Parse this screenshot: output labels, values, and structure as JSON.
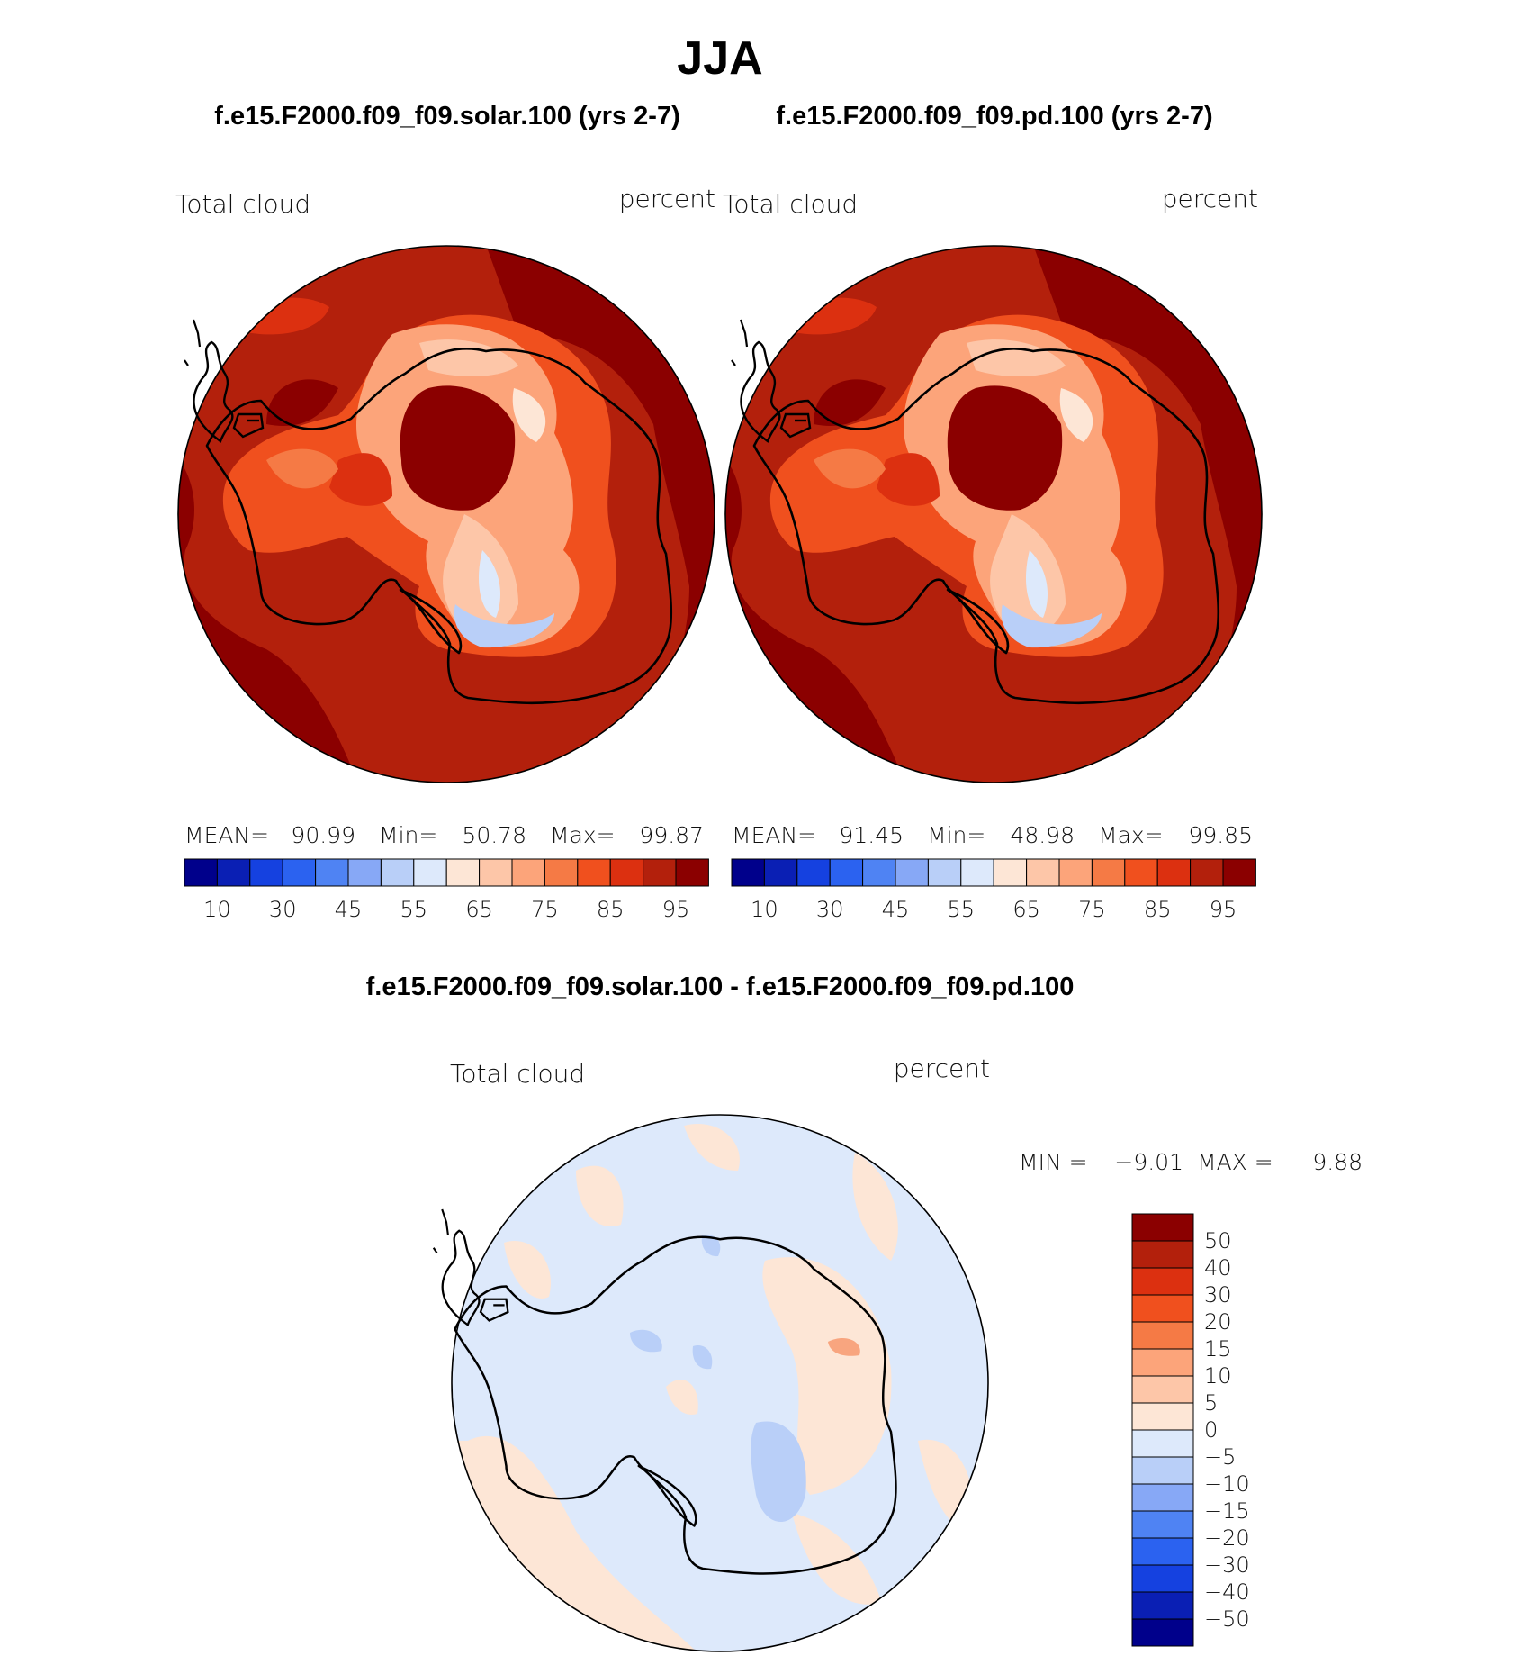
{
  "title": "JJA",
  "panels": [
    {
      "case_title": "f.e15.F2000.f09_f09.solar.100 (yrs 2-7)",
      "variable": "Total cloud",
      "units": "percent",
      "stats": {
        "mean_label": "MEAN=",
        "mean": "90.99",
        "min_label": "Min=",
        "min": "50.78",
        "max_label": "Max=",
        "max": "99.87"
      }
    },
    {
      "case_title": "f.e15.F2000.f09_f09.pd.100 (yrs 2-7)",
      "variable": "Total cloud",
      "units": "percent",
      "stats": {
        "mean_label": "MEAN=",
        "mean": "91.45",
        "min_label": "Min=",
        "min": "48.98",
        "max_label": "Max=",
        "max": "99.85"
      }
    }
  ],
  "abs_colorbar": {
    "colors": [
      "#00008b",
      "#0a1fb4",
      "#1541e0",
      "#2b62f0",
      "#4f83f3",
      "#87a8f6",
      "#b9cff8",
      "#dde9fb",
      "#fde6d6",
      "#fdc6a8",
      "#fca47a",
      "#f57a45",
      "#f0501e",
      "#dc3010",
      "#b3200c",
      "#8b0000"
    ],
    "tick_labels": [
      "10",
      "30",
      "45",
      "55",
      "65",
      "75",
      "85",
      "95"
    ]
  },
  "diff": {
    "title": "f.e15.F2000.f09_f09.solar.100 - f.e15.F2000.f09_f09.pd.100",
    "variable": "Total cloud",
    "units": "percent",
    "min_label": "MIN =",
    "min": "−9.01",
    "max_label": "MAX =",
    "max": "9.88",
    "colors": [
      "#8b0000",
      "#b3200c",
      "#dc3010",
      "#f0501e",
      "#f57a45",
      "#fca47a",
      "#fdc6a8",
      "#fde6d6",
      "#dde9fb",
      "#b9cff8",
      "#87a8f6",
      "#4f83f3",
      "#2b62f0",
      "#1541e0",
      "#0a1fb4",
      "#00008b"
    ],
    "tick_labels": [
      "50",
      "40",
      "30",
      "20",
      "15",
      "10",
      "5",
      "0",
      "−5",
      "−10",
      "−15",
      "−20",
      "−30",
      "−40",
      "−50"
    ]
  }
}
